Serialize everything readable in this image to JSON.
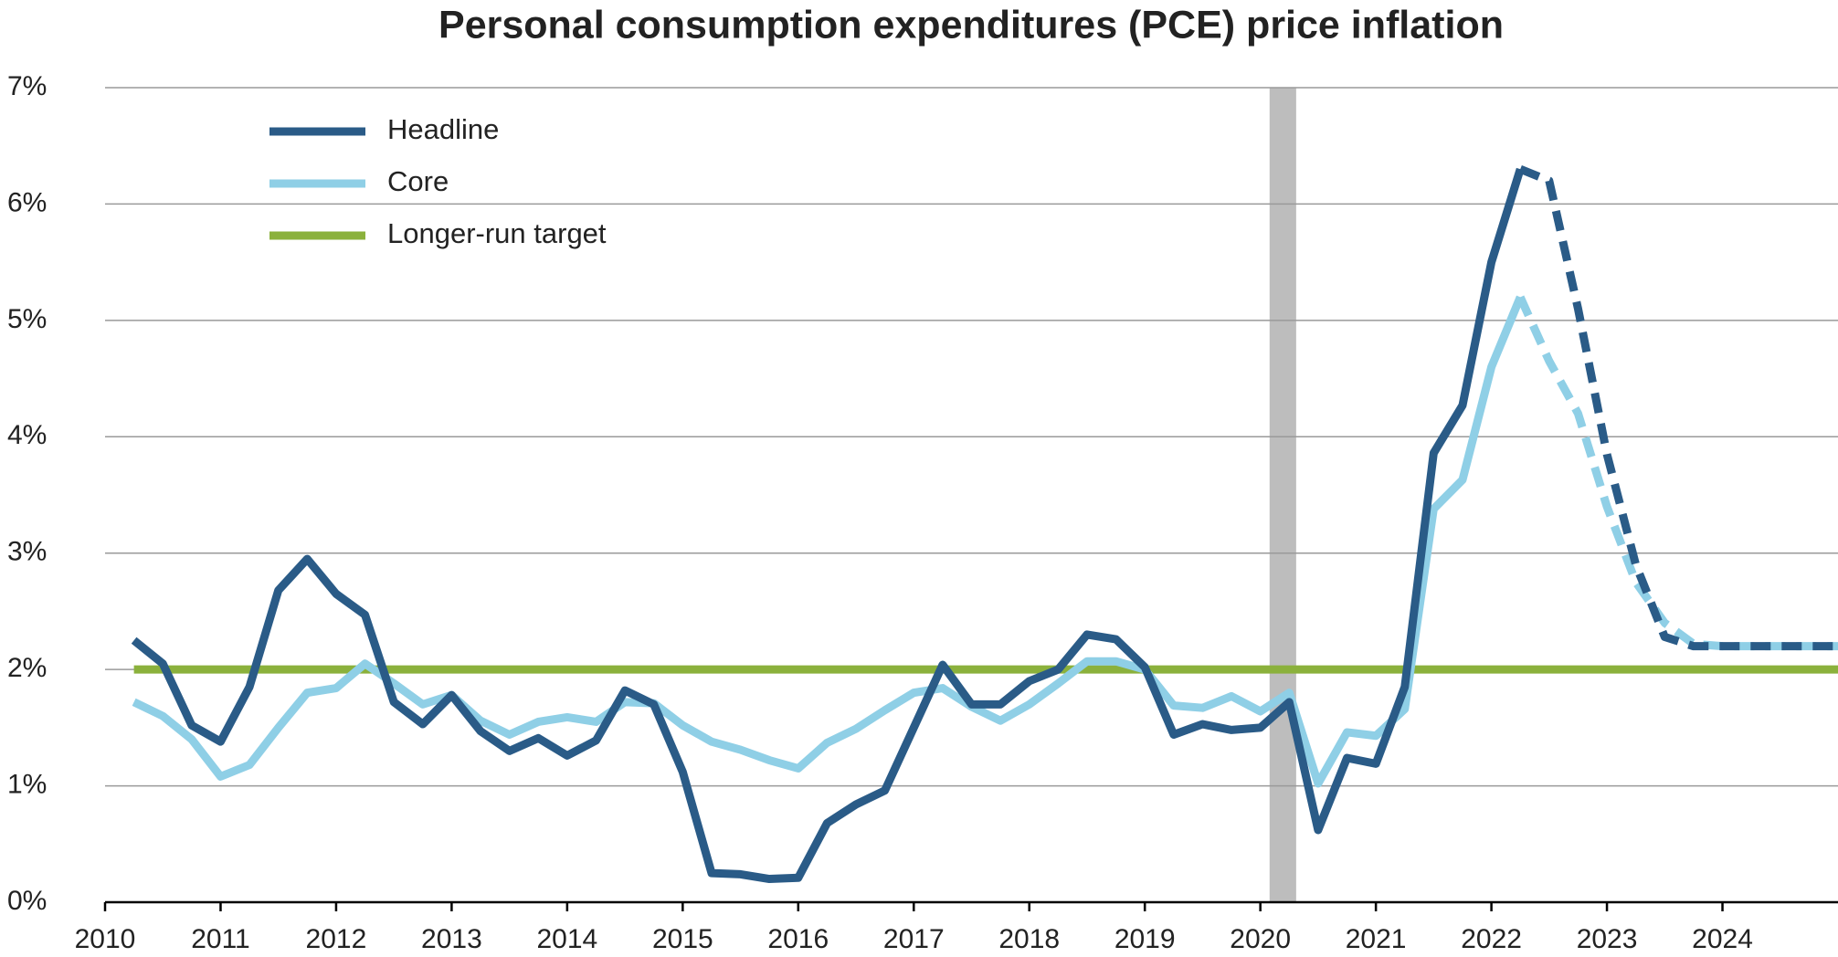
{
  "chart_data": {
    "type": "line",
    "title": "Personal consumption expenditures (PCE) price inflation",
    "x": [
      2010.25,
      2010.5,
      2010.75,
      2011,
      2011.25,
      2011.5,
      2011.75,
      2012,
      2012.25,
      2012.5,
      2012.75,
      2013,
      2013.25,
      2013.5,
      2013.75,
      2014,
      2014.25,
      2014.5,
      2014.75,
      2015,
      2015.25,
      2015.5,
      2015.75,
      2016,
      2016.25,
      2016.5,
      2016.75,
      2017,
      2017.25,
      2017.5,
      2017.75,
      2018,
      2018.25,
      2018.5,
      2018.75,
      2019,
      2019.25,
      2019.5,
      2019.75,
      2020,
      2020.25,
      2020.5,
      2020.75,
      2021,
      2021.25,
      2021.5,
      2021.75,
      2022,
      2022.25
    ],
    "series": [
      {
        "name": "Headline",
        "color": "#2a5b87",
        "values": [
          2.25,
          2.05,
          1.52,
          1.38,
          1.85,
          2.68,
          2.95,
          2.65,
          2.47,
          1.72,
          1.53,
          1.78,
          1.47,
          1.3,
          1.41,
          1.26,
          1.39,
          1.82,
          1.7,
          1.12,
          0.25,
          0.24,
          0.2,
          0.21,
          0.68,
          0.84,
          0.96,
          1.5,
          2.04,
          1.7,
          1.7,
          1.9,
          2.0,
          2.3,
          2.26,
          2.02,
          1.44,
          1.53,
          1.48,
          1.5,
          1.72,
          0.62,
          1.24,
          1.19,
          1.85,
          3.86,
          4.27,
          5.5,
          6.3
        ]
      },
      {
        "name": "Core",
        "color": "#8fcfe6",
        "values": [
          1.72,
          1.6,
          1.4,
          1.08,
          1.18,
          1.5,
          1.8,
          1.84,
          2.05,
          1.88,
          1.7,
          1.78,
          1.56,
          1.44,
          1.55,
          1.59,
          1.55,
          1.72,
          1.71,
          1.52,
          1.38,
          1.31,
          1.22,
          1.15,
          1.37,
          1.49,
          1.65,
          1.8,
          1.84,
          1.68,
          1.56,
          1.7,
          1.88,
          2.07,
          2.07,
          2.0,
          1.69,
          1.67,
          1.77,
          1.64,
          1.8,
          1.02,
          1.46,
          1.43,
          1.66,
          3.38,
          3.63,
          4.6,
          5.2
        ]
      },
      {
        "name": "Longer-run target",
        "color": "#8bb13c",
        "x": [
          2010.25,
          2025
        ],
        "values": [
          2,
          2
        ]
      },
      {
        "color": "#2a5b87",
        "dashed": true,
        "x": [
          2022.25,
          2022.5,
          2022.75,
          2023,
          2023.25,
          2023.5,
          2023.75,
          2024,
          2025
        ],
        "values": [
          6.3,
          6.2,
          5.1,
          3.85,
          2.9,
          2.28,
          2.2,
          2.2,
          2.2
        ]
      },
      {
        "color": "#8fcfe6",
        "dashed": true,
        "x": [
          2022.25,
          2022.5,
          2022.75,
          2023,
          2023.25,
          2023.5,
          2023.75,
          2024,
          2025
        ],
        "values": [
          5.2,
          4.65,
          4.2,
          3.4,
          2.75,
          2.4,
          2.22,
          2.2,
          2.2
        ]
      }
    ],
    "shaded": {
      "x": [
        2020.08,
        2020.31
      ],
      "color": "#bdbdbd"
    },
    "xlim": [
      2010,
      2025
    ],
    "xticks": [
      2010,
      2011,
      2012,
      2013,
      2014,
      2015,
      2016,
      2017,
      2018,
      2019,
      2020,
      2021,
      2022,
      2023,
      2024
    ],
    "ylim": [
      0,
      7
    ],
    "yticks": [
      {
        "value": 0,
        "label": "0%"
      },
      {
        "value": 1,
        "label": "1%"
      },
      {
        "value": 2,
        "label": "2%"
      },
      {
        "value": 3,
        "label": "3%"
      },
      {
        "value": 4,
        "label": "4%"
      },
      {
        "value": 5,
        "label": "5%"
      },
      {
        "value": 6,
        "label": "6%"
      },
      {
        "value": 7,
        "label": "7%"
      }
    ],
    "grid": true,
    "legend": "upper left"
  }
}
